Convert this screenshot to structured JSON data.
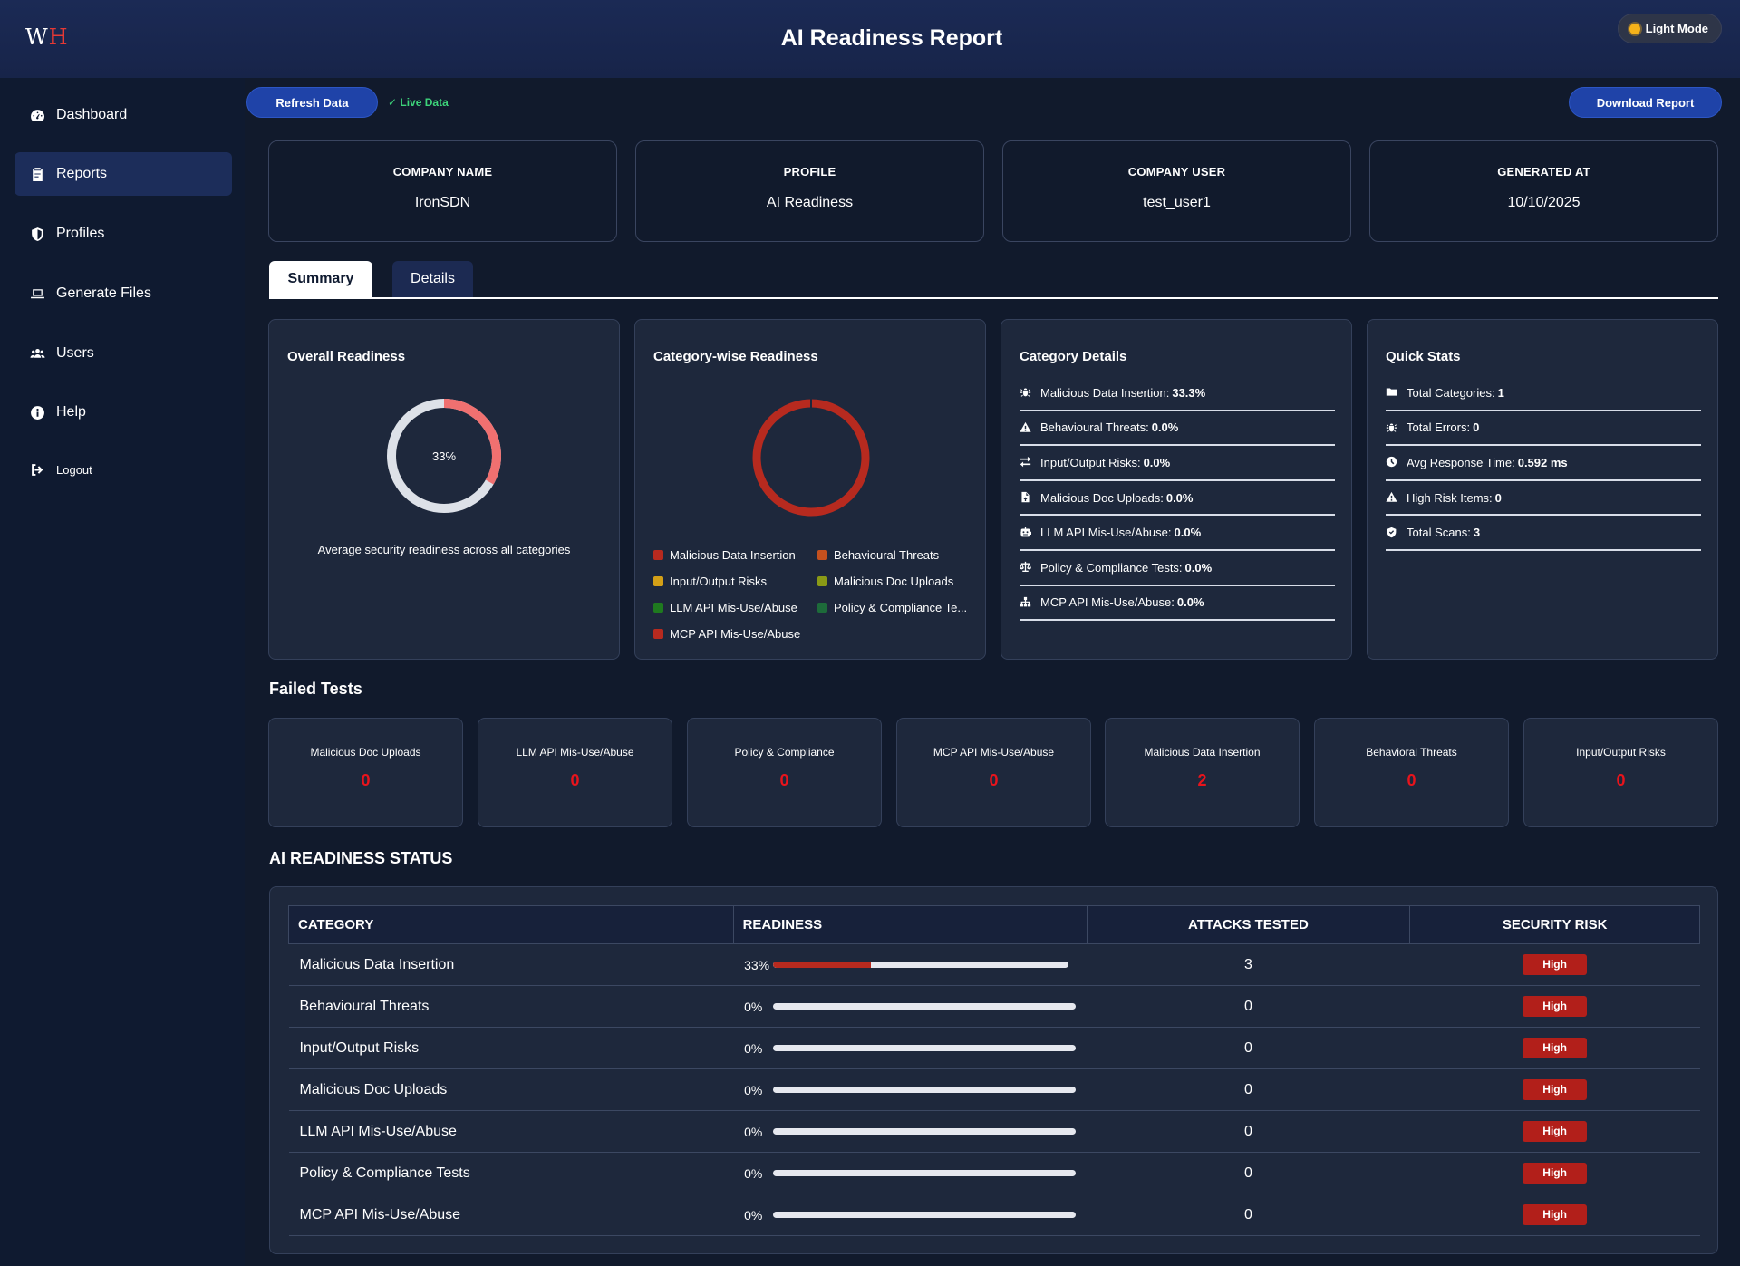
{
  "header": {
    "logo_w": "W",
    "logo_h": "H",
    "title": "AI Readiness Report",
    "mode_label": "Light Mode"
  },
  "sidebar": {
    "items": [
      {
        "label": "Dashboard",
        "icon": "dashboard-icon"
      },
      {
        "label": "Reports",
        "icon": "reports-icon",
        "active": true
      },
      {
        "label": "Profiles",
        "icon": "shield-icon"
      },
      {
        "label": "Generate Files",
        "icon": "laptop-icon"
      },
      {
        "label": "Users",
        "icon": "users-icon"
      },
      {
        "label": "Help",
        "icon": "info-icon"
      },
      {
        "label": "Logout",
        "icon": "logout-icon"
      }
    ]
  },
  "toolbar": {
    "refresh_label": "Refresh Data",
    "live_label": "✓ Live Data",
    "download_label": "Download Report"
  },
  "info_cards": [
    {
      "label": "COMPANY NAME",
      "value": "IronSDN"
    },
    {
      "label": "PROFILE",
      "value": "AI Readiness"
    },
    {
      "label": "COMPANY USER",
      "value": "test_user1"
    },
    {
      "label": "GENERATED AT",
      "value": "10/10/2025"
    }
  ],
  "tabs": [
    {
      "label": "Summary",
      "active": true
    },
    {
      "label": "Details",
      "active": false
    }
  ],
  "overall": {
    "title": "Overall Readiness",
    "percent_label": "33%",
    "percent": 33.3,
    "note": "Average security readiness across all categories",
    "fill_color": "#f07070",
    "track_color": "#dde1e8"
  },
  "category_chart": {
    "title": "Category-wise Readiness",
    "ring_color": "#b72a1f",
    "legend": [
      {
        "label": "Malicious Data Insertion",
        "color": "#b72a1f"
      },
      {
        "label": "Behavioural Threats",
        "color": "#c4501e"
      },
      {
        "label": "Input/Output Risks",
        "color": "#d4a017"
      },
      {
        "label": "Malicious Doc Uploads",
        "color": "#8a9a16"
      },
      {
        "label": "LLM API Mis-Use/Abuse",
        "color": "#1f7a1f"
      },
      {
        "label": "Policy & Compliance Te...",
        "color": "#1d6b3a"
      },
      {
        "label": "MCP API Mis-Use/Abuse",
        "color": "#b72a1f"
      }
    ]
  },
  "category_details": {
    "title": "Category Details",
    "items": [
      {
        "label": "Malicious Data Insertion:",
        "value": "33.3%",
        "icon": "bug-icon"
      },
      {
        "label": "Behavioural Threats:",
        "value": "0.0%",
        "icon": "warning-icon"
      },
      {
        "label": "Input/Output Risks:",
        "value": "0.0%",
        "icon": "exchange-icon"
      },
      {
        "label": "Malicious Doc Uploads:",
        "value": "0.0%",
        "icon": "file-icon"
      },
      {
        "label": "LLM API Mis-Use/Abuse:",
        "value": "0.0%",
        "icon": "robot-icon"
      },
      {
        "label": "Policy & Compliance Tests:",
        "value": "0.0%",
        "icon": "scale-icon"
      },
      {
        "label": "MCP API Mis-Use/Abuse:",
        "value": "0.0%",
        "icon": "network-icon"
      }
    ]
  },
  "quick_stats": {
    "title": "Quick Stats",
    "items": [
      {
        "label": "Total Categories:",
        "value": "1",
        "icon": "folder-icon"
      },
      {
        "label": "Total Errors:",
        "value": "0",
        "icon": "bug-icon"
      },
      {
        "label": "Avg Response Time:",
        "value": "0.592 ms",
        "icon": "clock-icon"
      },
      {
        "label": "High Risk Items:",
        "value": "0",
        "icon": "warning-icon"
      },
      {
        "label": "Total Scans:",
        "value": "3",
        "icon": "shield-check-icon"
      }
    ]
  },
  "failed_tests": {
    "title": "Failed Tests",
    "items": [
      {
        "label": "Malicious Doc Uploads",
        "value": "0"
      },
      {
        "label": "LLM API Mis-Use/Abuse",
        "value": "0"
      },
      {
        "label": "Policy & Compliance",
        "value": "0"
      },
      {
        "label": "MCP API Mis-Use/Abuse",
        "value": "0"
      },
      {
        "label": "Malicious Data Insertion",
        "value": "2"
      },
      {
        "label": "Behavioral Threats",
        "value": "0"
      },
      {
        "label": "Input/Output Risks",
        "value": "0"
      }
    ]
  },
  "status_table": {
    "title": "AI READINESS STATUS",
    "headers": [
      "CATEGORY",
      "READINESS",
      "ATTACKS TESTED",
      "SECURITY RISK"
    ],
    "rows": [
      {
        "category": "Malicious Data Insertion",
        "readiness_label": "33%",
        "readiness": 33,
        "attacks": "3",
        "risk": "High"
      },
      {
        "category": "Behavioural Threats",
        "readiness_label": "0%",
        "readiness": 0,
        "attacks": "0",
        "risk": "High"
      },
      {
        "category": "Input/Output Risks",
        "readiness_label": "0%",
        "readiness": 0,
        "attacks": "0",
        "risk": "High"
      },
      {
        "category": "Malicious Doc Uploads",
        "readiness_label": "0%",
        "readiness": 0,
        "attacks": "0",
        "risk": "High"
      },
      {
        "category": "LLM API Mis-Use/Abuse",
        "readiness_label": "0%",
        "readiness": 0,
        "attacks": "0",
        "risk": "High"
      },
      {
        "category": "Policy & Compliance Tests",
        "readiness_label": "0%",
        "readiness": 0,
        "attacks": "0",
        "risk": "High"
      },
      {
        "category": "MCP API Mis-Use/Abuse",
        "readiness_label": "0%",
        "readiness": 0,
        "attacks": "0",
        "risk": "High"
      }
    ]
  }
}
